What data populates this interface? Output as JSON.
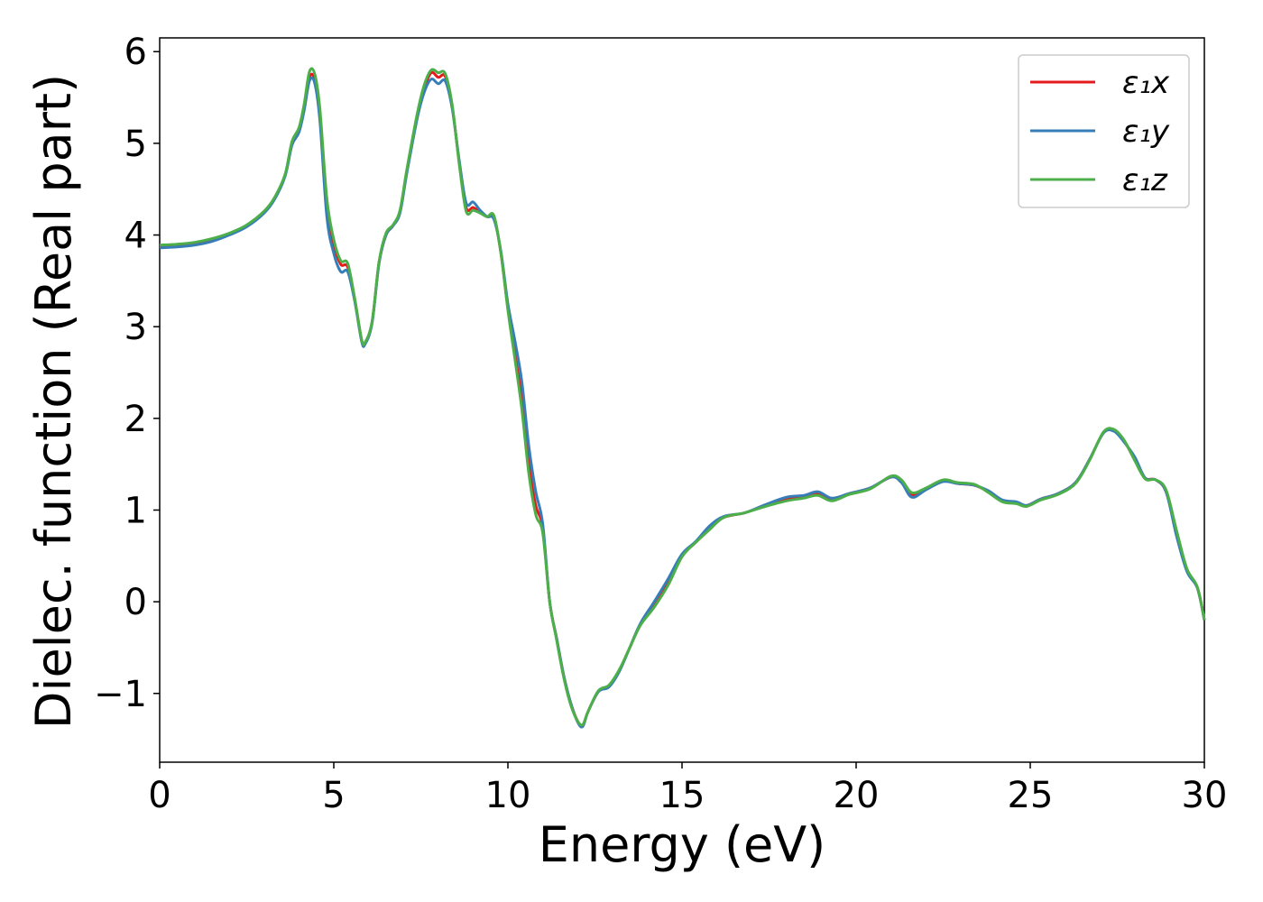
{
  "chart_data": {
    "type": "line",
    "xlabel": "Energy (eV)",
    "ylabel": "Dielec. function (Real part)",
    "xlim": [
      0,
      30
    ],
    "ylim": [
      -1.75,
      6.15
    ],
    "xticks": [
      0,
      5,
      10,
      15,
      20,
      25,
      30
    ],
    "yticks": [
      -1,
      0,
      1,
      2,
      3,
      4,
      5,
      6
    ],
    "xtick_labels": [
      "0",
      "5",
      "10",
      "15",
      "20",
      "25",
      "30"
    ],
    "ytick_labels": [
      "−1",
      "0",
      "1",
      "2",
      "3",
      "4",
      "5",
      "6"
    ],
    "grid": false,
    "legend_position": "top-right",
    "series": [
      {
        "name": "ε₁x",
        "color": "#e41a1c",
        "points": [
          [
            0,
            3.88
          ],
          [
            0.5,
            3.89
          ],
          [
            1,
            3.91
          ],
          [
            1.5,
            3.95
          ],
          [
            2,
            4.01
          ],
          [
            2.5,
            4.1
          ],
          [
            3,
            4.25
          ],
          [
            3.3,
            4.4
          ],
          [
            3.6,
            4.65
          ],
          [
            3.8,
            5.0
          ],
          [
            4.0,
            5.15
          ],
          [
            4.15,
            5.4
          ],
          [
            4.3,
            5.72
          ],
          [
            4.45,
            5.7
          ],
          [
            4.6,
            5.3
          ],
          [
            4.8,
            4.3
          ],
          [
            5.0,
            3.9
          ],
          [
            5.2,
            3.68
          ],
          [
            5.4,
            3.65
          ],
          [
            5.6,
            3.3
          ],
          [
            5.8,
            2.85
          ],
          [
            5.9,
            2.82
          ],
          [
            6.1,
            3.05
          ],
          [
            6.3,
            3.7
          ],
          [
            6.5,
            4.0
          ],
          [
            6.7,
            4.1
          ],
          [
            6.9,
            4.25
          ],
          [
            7.1,
            4.7
          ],
          [
            7.4,
            5.3
          ],
          [
            7.6,
            5.6
          ],
          [
            7.8,
            5.77
          ],
          [
            8.0,
            5.72
          ],
          [
            8.2,
            5.73
          ],
          [
            8.4,
            5.4
          ],
          [
            8.6,
            4.8
          ],
          [
            8.8,
            4.3
          ],
          [
            9.0,
            4.3
          ],
          [
            9.2,
            4.25
          ],
          [
            9.4,
            4.2
          ],
          [
            9.6,
            4.2
          ],
          [
            9.8,
            3.8
          ],
          [
            10.0,
            3.2
          ],
          [
            10.2,
            2.7
          ],
          [
            10.4,
            2.2
          ],
          [
            10.6,
            1.5
          ],
          [
            10.8,
            1.05
          ],
          [
            11.0,
            0.8
          ],
          [
            11.2,
            0.0
          ],
          [
            11.4,
            -0.4
          ],
          [
            11.6,
            -0.8
          ],
          [
            11.8,
            -1.1
          ],
          [
            12.0,
            -1.3
          ],
          [
            12.15,
            -1.35
          ],
          [
            12.3,
            -1.2
          ],
          [
            12.6,
            -0.98
          ],
          [
            12.9,
            -0.92
          ],
          [
            13.2,
            -0.75
          ],
          [
            13.5,
            -0.5
          ],
          [
            13.8,
            -0.25
          ],
          [
            14.2,
            -0.05
          ],
          [
            14.6,
            0.2
          ],
          [
            15.0,
            0.5
          ],
          [
            15.4,
            0.65
          ],
          [
            15.8,
            0.8
          ],
          [
            16.2,
            0.92
          ],
          [
            16.8,
            0.97
          ],
          [
            17.4,
            1.05
          ],
          [
            18.0,
            1.12
          ],
          [
            18.5,
            1.15
          ],
          [
            18.9,
            1.18
          ],
          [
            19.3,
            1.12
          ],
          [
            19.8,
            1.18
          ],
          [
            20.4,
            1.24
          ],
          [
            21.0,
            1.36
          ],
          [
            21.3,
            1.32
          ],
          [
            21.6,
            1.17
          ],
          [
            22.0,
            1.23
          ],
          [
            22.5,
            1.32
          ],
          [
            22.9,
            1.29
          ],
          [
            23.4,
            1.27
          ],
          [
            23.8,
            1.2
          ],
          [
            24.2,
            1.1
          ],
          [
            24.6,
            1.08
          ],
          [
            24.9,
            1.05
          ],
          [
            25.3,
            1.12
          ],
          [
            25.8,
            1.18
          ],
          [
            26.3,
            1.3
          ],
          [
            26.7,
            1.55
          ],
          [
            27.1,
            1.84
          ],
          [
            27.4,
            1.87
          ],
          [
            27.7,
            1.75
          ],
          [
            28.0,
            1.55
          ],
          [
            28.3,
            1.35
          ],
          [
            28.6,
            1.33
          ],
          [
            28.9,
            1.2
          ],
          [
            29.2,
            0.75
          ],
          [
            29.5,
            0.35
          ],
          [
            29.8,
            0.15
          ],
          [
            30,
            -0.2
          ]
        ]
      },
      {
        "name": "ε₁y",
        "color": "#377eb8",
        "points": [
          [
            0,
            3.86
          ],
          [
            0.5,
            3.87
          ],
          [
            1,
            3.89
          ],
          [
            1.5,
            3.93
          ],
          [
            2,
            4.0
          ],
          [
            2.5,
            4.09
          ],
          [
            3,
            4.24
          ],
          [
            3.3,
            4.39
          ],
          [
            3.6,
            4.64
          ],
          [
            3.8,
            4.98
          ],
          [
            4.0,
            5.12
          ],
          [
            4.15,
            5.36
          ],
          [
            4.3,
            5.68
          ],
          [
            4.45,
            5.66
          ],
          [
            4.6,
            5.25
          ],
          [
            4.8,
            4.2
          ],
          [
            5.0,
            3.8
          ],
          [
            5.2,
            3.6
          ],
          [
            5.4,
            3.6
          ],
          [
            5.6,
            3.28
          ],
          [
            5.8,
            2.84
          ],
          [
            5.9,
            2.81
          ],
          [
            6.1,
            3.04
          ],
          [
            6.3,
            3.69
          ],
          [
            6.5,
            4.0
          ],
          [
            6.7,
            4.1
          ],
          [
            6.9,
            4.24
          ],
          [
            7.1,
            4.68
          ],
          [
            7.4,
            5.28
          ],
          [
            7.6,
            5.56
          ],
          [
            7.8,
            5.7
          ],
          [
            8.0,
            5.65
          ],
          [
            8.2,
            5.68
          ],
          [
            8.4,
            5.38
          ],
          [
            8.6,
            4.82
          ],
          [
            8.8,
            4.35
          ],
          [
            9.0,
            4.36
          ],
          [
            9.2,
            4.27
          ],
          [
            9.4,
            4.2
          ],
          [
            9.6,
            4.17
          ],
          [
            9.8,
            3.82
          ],
          [
            10.0,
            3.25
          ],
          [
            10.2,
            2.85
          ],
          [
            10.4,
            2.4
          ],
          [
            10.6,
            1.7
          ],
          [
            10.8,
            1.2
          ],
          [
            11.0,
            0.85
          ],
          [
            11.2,
            0.0
          ],
          [
            11.4,
            -0.4
          ],
          [
            11.6,
            -0.8
          ],
          [
            11.8,
            -1.1
          ],
          [
            12.0,
            -1.31
          ],
          [
            12.15,
            -1.36
          ],
          [
            12.3,
            -1.2
          ],
          [
            12.6,
            -0.98
          ],
          [
            12.9,
            -0.93
          ],
          [
            13.2,
            -0.76
          ],
          [
            13.5,
            -0.5
          ],
          [
            13.8,
            -0.24
          ],
          [
            14.2,
            0.0
          ],
          [
            14.6,
            0.25
          ],
          [
            15.0,
            0.52
          ],
          [
            15.4,
            0.66
          ],
          [
            15.8,
            0.83
          ],
          [
            16.2,
            0.93
          ],
          [
            16.8,
            0.97
          ],
          [
            17.4,
            1.06
          ],
          [
            18.0,
            1.14
          ],
          [
            18.5,
            1.16
          ],
          [
            18.9,
            1.2
          ],
          [
            19.3,
            1.13
          ],
          [
            19.8,
            1.18
          ],
          [
            20.4,
            1.24
          ],
          [
            21.0,
            1.36
          ],
          [
            21.3,
            1.3
          ],
          [
            21.6,
            1.14
          ],
          [
            22.0,
            1.22
          ],
          [
            22.5,
            1.31
          ],
          [
            22.9,
            1.29
          ],
          [
            23.4,
            1.27
          ],
          [
            23.8,
            1.21
          ],
          [
            24.2,
            1.11
          ],
          [
            24.6,
            1.09
          ],
          [
            24.9,
            1.05
          ],
          [
            25.3,
            1.12
          ],
          [
            25.8,
            1.18
          ],
          [
            26.3,
            1.3
          ],
          [
            26.7,
            1.55
          ],
          [
            27.1,
            1.84
          ],
          [
            27.4,
            1.86
          ],
          [
            27.7,
            1.74
          ],
          [
            28.0,
            1.58
          ],
          [
            28.3,
            1.35
          ],
          [
            28.6,
            1.33
          ],
          [
            28.9,
            1.2
          ],
          [
            29.2,
            0.72
          ],
          [
            29.5,
            0.33
          ],
          [
            29.8,
            0.15
          ],
          [
            30,
            -0.2
          ]
        ]
      },
      {
        "name": "ε₁z",
        "color": "#4daf4a",
        "points": [
          [
            0,
            3.89
          ],
          [
            0.5,
            3.9
          ],
          [
            1,
            3.92
          ],
          [
            1.5,
            3.96
          ],
          [
            2,
            4.02
          ],
          [
            2.5,
            4.11
          ],
          [
            3,
            4.26
          ],
          [
            3.3,
            4.41
          ],
          [
            3.6,
            4.66
          ],
          [
            3.8,
            5.02
          ],
          [
            4.0,
            5.17
          ],
          [
            4.15,
            5.43
          ],
          [
            4.3,
            5.78
          ],
          [
            4.45,
            5.76
          ],
          [
            4.6,
            5.38
          ],
          [
            4.8,
            4.4
          ],
          [
            5.0,
            3.95
          ],
          [
            5.2,
            3.72
          ],
          [
            5.4,
            3.69
          ],
          [
            5.6,
            3.31
          ],
          [
            5.8,
            2.86
          ],
          [
            5.9,
            2.83
          ],
          [
            6.1,
            3.06
          ],
          [
            6.3,
            3.71
          ],
          [
            6.5,
            4.02
          ],
          [
            6.7,
            4.11
          ],
          [
            6.9,
            4.27
          ],
          [
            7.1,
            4.72
          ],
          [
            7.4,
            5.33
          ],
          [
            7.6,
            5.64
          ],
          [
            7.8,
            5.8
          ],
          [
            8.0,
            5.77
          ],
          [
            8.2,
            5.76
          ],
          [
            8.4,
            5.42
          ],
          [
            8.6,
            4.78
          ],
          [
            8.8,
            4.26
          ],
          [
            9.0,
            4.27
          ],
          [
            9.2,
            4.24
          ],
          [
            9.4,
            4.2
          ],
          [
            9.6,
            4.21
          ],
          [
            9.8,
            3.8
          ],
          [
            10.0,
            3.18
          ],
          [
            10.2,
            2.65
          ],
          [
            10.4,
            2.1
          ],
          [
            10.6,
            1.4
          ],
          [
            10.8,
            0.95
          ],
          [
            11.0,
            0.75
          ],
          [
            11.2,
            0.0
          ],
          [
            11.4,
            -0.42
          ],
          [
            11.6,
            -0.82
          ],
          [
            11.8,
            -1.12
          ],
          [
            12.0,
            -1.3
          ],
          [
            12.15,
            -1.34
          ],
          [
            12.3,
            -1.2
          ],
          [
            12.6,
            -0.97
          ],
          [
            12.9,
            -0.91
          ],
          [
            13.2,
            -0.74
          ],
          [
            13.5,
            -0.5
          ],
          [
            13.8,
            -0.26
          ],
          [
            14.2,
            -0.06
          ],
          [
            14.6,
            0.18
          ],
          [
            15.0,
            0.49
          ],
          [
            15.4,
            0.65
          ],
          [
            15.8,
            0.79
          ],
          [
            16.2,
            0.92
          ],
          [
            16.8,
            0.97
          ],
          [
            17.4,
            1.04
          ],
          [
            18.0,
            1.1
          ],
          [
            18.5,
            1.13
          ],
          [
            18.9,
            1.16
          ],
          [
            19.3,
            1.1
          ],
          [
            19.8,
            1.17
          ],
          [
            20.4,
            1.23
          ],
          [
            21.0,
            1.37
          ],
          [
            21.3,
            1.33
          ],
          [
            21.6,
            1.19
          ],
          [
            22.0,
            1.24
          ],
          [
            22.5,
            1.33
          ],
          [
            22.9,
            1.3
          ],
          [
            23.4,
            1.28
          ],
          [
            23.8,
            1.19
          ],
          [
            24.2,
            1.09
          ],
          [
            24.6,
            1.07
          ],
          [
            24.9,
            1.04
          ],
          [
            25.3,
            1.11
          ],
          [
            25.8,
            1.17
          ],
          [
            26.3,
            1.29
          ],
          [
            26.7,
            1.54
          ],
          [
            27.1,
            1.85
          ],
          [
            27.4,
            1.88
          ],
          [
            27.7,
            1.76
          ],
          [
            28.0,
            1.54
          ],
          [
            28.3,
            1.34
          ],
          [
            28.6,
            1.33
          ],
          [
            28.9,
            1.22
          ],
          [
            29.2,
            0.78
          ],
          [
            29.5,
            0.36
          ],
          [
            29.8,
            0.16
          ],
          [
            30,
            -0.2
          ]
        ]
      }
    ]
  }
}
